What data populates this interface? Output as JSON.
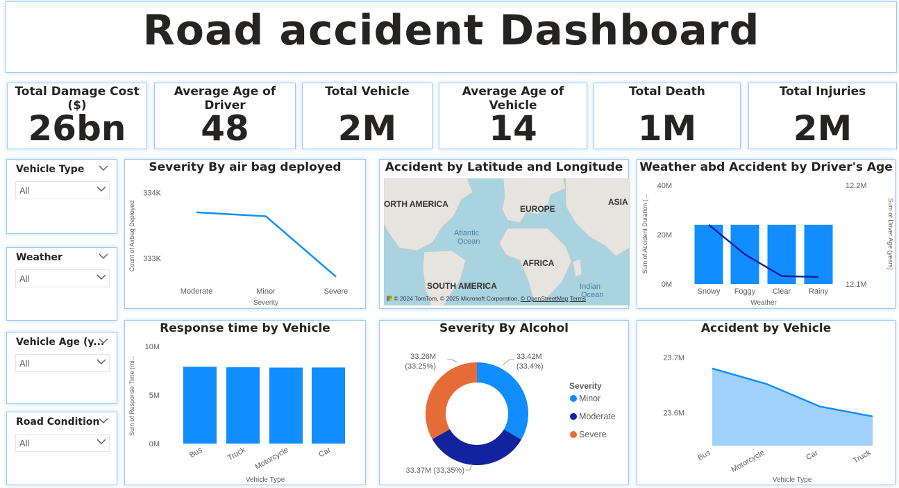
{
  "dashboard_title": "Road accident Dashboard",
  "kpis": [
    {
      "label": "Total Damage Cost ($)",
      "value": "26bn"
    },
    {
      "label": "Average Age of Driver",
      "value": "48"
    },
    {
      "label": "Total Vehicle",
      "value": "2M"
    },
    {
      "label": "Average Age of Vehicle",
      "value": "14"
    },
    {
      "label": "Total Death",
      "value": "1M"
    },
    {
      "label": "Total Injuries",
      "value": "2M"
    }
  ],
  "slicers": [
    {
      "title": "Vehicle Type",
      "value": "All"
    },
    {
      "title": "Weather",
      "value": "All"
    },
    {
      "title": "Vehicle Age (y...",
      "value": "All"
    },
    {
      "title": "Road Condition",
      "value": "All"
    }
  ],
  "colors": {
    "blue": "#118dff",
    "dark_blue": "#12239e",
    "orange": "#e66c37",
    "light_area": "#9fd1fb",
    "border": "#9ecbf0"
  },
  "icons": {
    "dropdown": "chevron-down-icon"
  },
  "map": {
    "title": "Accident by Latitude and Longitude",
    "labels": [
      "ORTH AMERICA",
      "EUROPE",
      "ASIA",
      "Atlantic",
      "Ocean",
      "AFRICA",
      "SOUTH AMERICA",
      "Indian",
      "Ocean"
    ],
    "attribution": "© 2024 TomTom, © 2025 Microsoft Corporation,",
    "attribution_link": "© OpenStreetMap",
    "terms": "Terms"
  },
  "chart_data": [
    {
      "type": "line",
      "title": "Severity By air bag deployed",
      "xlabel": "Severity",
      "ylabel": "Count of Airbag Deployed",
      "categories": [
        "Moderate",
        "Minor",
        "Severe"
      ],
      "values": [
        333700,
        333640,
        332720
      ],
      "ylim": [
        332600,
        334100
      ],
      "yticks": [
        {
          "v": 334000,
          "label": "334K"
        },
        {
          "v": 333000,
          "label": "333K"
        }
      ]
    },
    {
      "type": "bar",
      "title": "Weather abd Accident by Driver's Age",
      "xlabel": "Weather",
      "ylabel": "Sum of Accident Duration (...",
      "y2label": "Sum of Driver Age (years)",
      "categories": [
        "Snowy",
        "Foggy",
        "Clear",
        "Rainy"
      ],
      "series": [
        {
          "name": "Sum of Accident Duration",
          "values": [
            24000000,
            24000000,
            24000000,
            24000000
          ],
          "ylim": [
            0,
            40000000
          ]
        },
        {
          "name": "Sum of Driver Age (years)",
          "values": [
            12160000,
            12130000,
            12108000,
            12107000
          ],
          "ylim": [
            12100000,
            12200000
          ]
        }
      ],
      "yticks": [
        {
          "v": 40000000,
          "label": "40M"
        },
        {
          "v": 20000000,
          "label": "20M"
        },
        {
          "v": 0,
          "label": "0M"
        }
      ],
      "y2ticks": [
        {
          "v": 12200000,
          "label": "12.2M"
        },
        {
          "v": 12100000,
          "label": "12.1M"
        }
      ]
    },
    {
      "type": "bar",
      "title": "Response time by Vehicle",
      "xlabel": "Vehicle Type",
      "ylabel": "Sum of Response Time (mi...",
      "categories": [
        "Bus",
        "Truck",
        "Motorcycle",
        "Car"
      ],
      "values": [
        7900000,
        7850000,
        7820000,
        7830000
      ],
      "ylim": [
        0,
        10000000
      ],
      "yticks": [
        {
          "v": 10000000,
          "label": "10M"
        },
        {
          "v": 5000000,
          "label": "5M"
        },
        {
          "v": 0,
          "label": "0M"
        }
      ]
    },
    {
      "type": "pie",
      "title": "Severity By Alcohol",
      "legend_title": "Severity",
      "slices": [
        {
          "name": "Minor",
          "value": 33.42,
          "label": "33.42M",
          "pct": "(33.4%)"
        },
        {
          "name": "Moderate",
          "value": 33.37,
          "label": "33.37M (33.35%)",
          "pct": ""
        },
        {
          "name": "Severe",
          "value": 33.26,
          "label": "33.26M",
          "pct": "(33.25%)"
        }
      ]
    },
    {
      "type": "area",
      "title": "Accident by Vehicle",
      "xlabel": "Vehicle Type",
      "categories": [
        "Bus",
        "Motorcycle",
        "Car",
        "Truck"
      ],
      "values": [
        23680000,
        23652000,
        23611000,
        23593000
      ],
      "ylim": [
        23540000,
        23720000
      ],
      "yticks": [
        {
          "v": 23700000,
          "label": "23.7M"
        },
        {
          "v": 23600000,
          "label": "23.6M"
        }
      ]
    }
  ]
}
